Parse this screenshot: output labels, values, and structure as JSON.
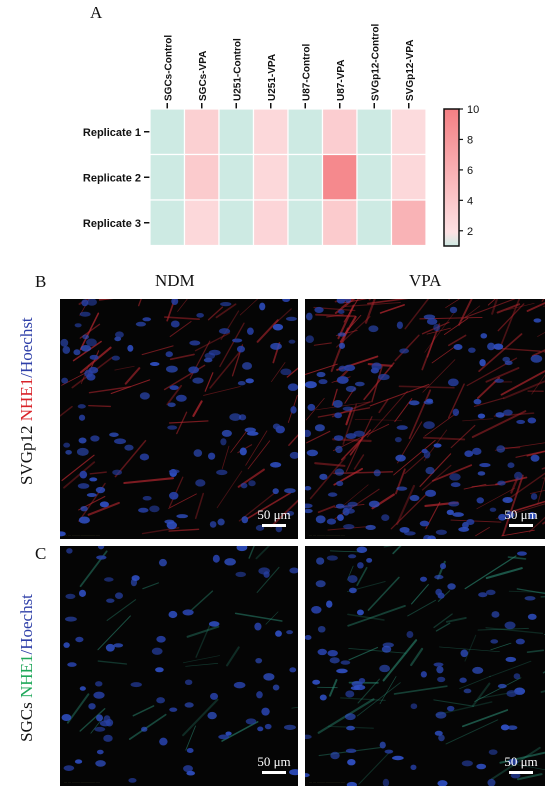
{
  "panels": {
    "a_label": "A",
    "b_label": "B",
    "c_label": "C"
  },
  "chart_data": {
    "type": "heatmap",
    "columns": [
      "SGCs-Control",
      "SGCs-VPA",
      "U251-Control",
      "U251-VPA",
      "U87-Control",
      "U87-VPA",
      "SVGp12-Control",
      "SVGp12-VPA"
    ],
    "rows": [
      "Replicate 1",
      "Replicate 2",
      "Replicate 3"
    ],
    "values": [
      [
        1,
        2.6,
        1,
        2.0,
        1,
        2.8,
        1,
        1.8
      ],
      [
        1,
        3.0,
        1,
        2.0,
        1,
        9.0,
        1,
        2.0
      ],
      [
        1,
        2.0,
        1,
        2.2,
        1,
        3.0,
        1,
        5.0
      ]
    ],
    "colorbar": {
      "ticks": [
        "10",
        "8",
        "6",
        "4",
        "2"
      ],
      "min": 1,
      "max": 10,
      "low_color": "#cdeae3",
      "mid_color": "#fde1e3",
      "high_color": "#f47f83"
    }
  },
  "micrographs": {
    "col_headers": [
      "NDM",
      "VPA"
    ],
    "rows": [
      {
        "name": "SVGp12",
        "marker": "NHE1",
        "separator": "/",
        "counterstain": "Hoechst",
        "marker_color": "#d9232a",
        "counterstain_color": "#2e3fa8"
      },
      {
        "name": "SGCs",
        "marker": "NHE1",
        "separator": "/",
        "counterstain": "Hoechst",
        "marker_color": "#20a85a",
        "counterstain_color": "#2e3fa8"
      }
    ],
    "scalebar_label": "50 μm"
  }
}
